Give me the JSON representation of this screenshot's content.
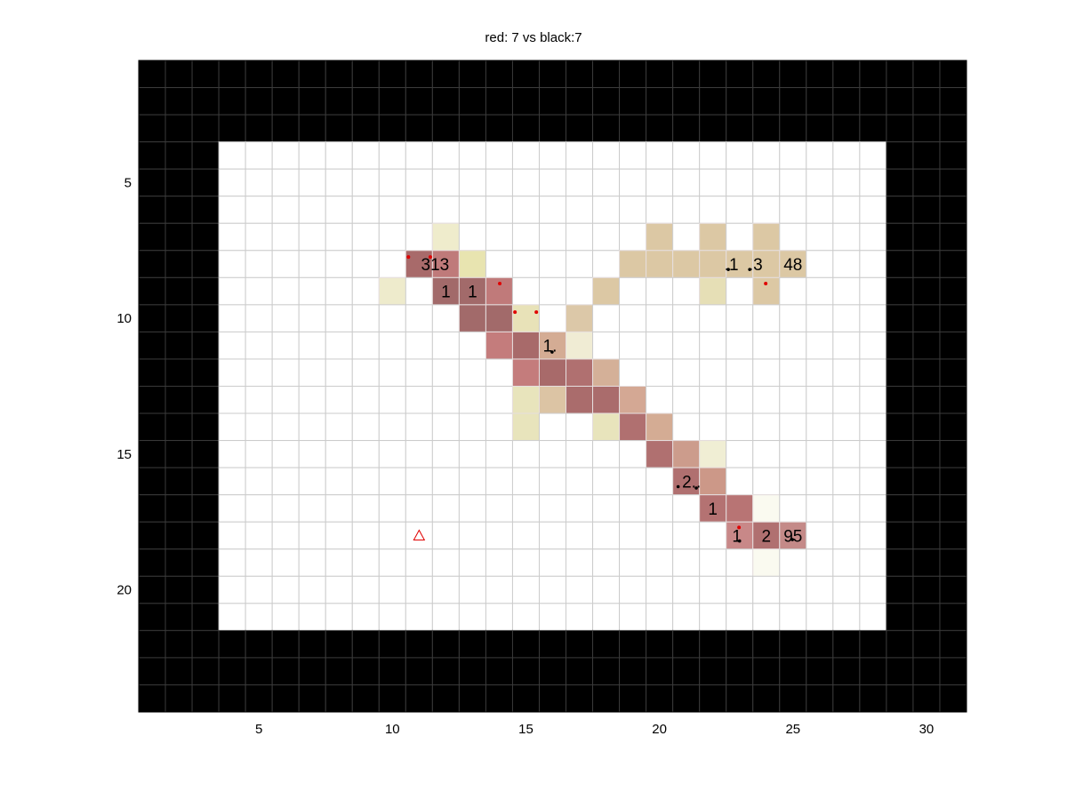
{
  "chart_data": {
    "type": "heatmap",
    "title": "red: 7 vs black:7",
    "cols": 31,
    "rows": 24,
    "xlim": [
      0.5,
      31.5
    ],
    "ylim": [
      0.5,
      24.5
    ],
    "y_reversed": true,
    "xticks": [
      5,
      10,
      15,
      20,
      25,
      30
    ],
    "yticks": [
      5,
      10,
      15,
      20
    ],
    "grid": true,
    "colors": {
      "wall": "#000000",
      "free": "#ffffff",
      "grid": "#cccccc",
      "red_marker": "#e00000",
      "black_marker": "#000000"
    },
    "wall_region": "outside rows 4-21 x cols 4-28",
    "cells": [
      {
        "col": 12,
        "row": 7,
        "color": "#efeccc"
      },
      {
        "col": 20,
        "row": 7,
        "color": "#dcc8a4"
      },
      {
        "col": 22,
        "row": 7,
        "color": "#dcc8a4"
      },
      {
        "col": 24,
        "row": 7,
        "color": "#dcc8a4"
      },
      {
        "col": 11,
        "row": 8,
        "color": "#a86a6a"
      },
      {
        "col": 12,
        "row": 8,
        "color": "#bf7a7a"
      },
      {
        "col": 13,
        "row": 8,
        "color": "#e8e4b0"
      },
      {
        "col": 19,
        "row": 8,
        "color": "#dcc8a4"
      },
      {
        "col": 20,
        "row": 8,
        "color": "#dcc8a4"
      },
      {
        "col": 21,
        "row": 8,
        "color": "#dcc8a4"
      },
      {
        "col": 22,
        "row": 8,
        "color": "#dcc8a4"
      },
      {
        "col": 23,
        "row": 8,
        "color": "#dcc8a4"
      },
      {
        "col": 24,
        "row": 8,
        "color": "#dcc8a4"
      },
      {
        "col": 25,
        "row": 8,
        "color": "#dcc8a4"
      },
      {
        "col": 10,
        "row": 9,
        "color": "#eeebcc"
      },
      {
        "col": 12,
        "row": 9,
        "color": "#a26a6a"
      },
      {
        "col": 13,
        "row": 9,
        "color": "#a26a6a"
      },
      {
        "col": 14,
        "row": 9,
        "color": "#c07a7a"
      },
      {
        "col": 18,
        "row": 9,
        "color": "#dcc8a4"
      },
      {
        "col": 22,
        "row": 9,
        "color": "#e6dfb6"
      },
      {
        "col": 24,
        "row": 9,
        "color": "#dcc8a4"
      },
      {
        "col": 13,
        "row": 10,
        "color": "#a26a6a"
      },
      {
        "col": 14,
        "row": 10,
        "color": "#a26a6a"
      },
      {
        "col": 15,
        "row": 10,
        "color": "#e8e2b8"
      },
      {
        "col": 17,
        "row": 10,
        "color": "#dcc8a8"
      },
      {
        "col": 14,
        "row": 11,
        "color": "#c47c7c"
      },
      {
        "col": 15,
        "row": 11,
        "color": "#a86a6a"
      },
      {
        "col": 16,
        "row": 11,
        "color": "#d4ac94"
      },
      {
        "col": 17,
        "row": 11,
        "color": "#f0ecd4"
      },
      {
        "col": 15,
        "row": 12,
        "color": "#c47c7c"
      },
      {
        "col": 16,
        "row": 12,
        "color": "#a86a6a"
      },
      {
        "col": 17,
        "row": 12,
        "color": "#b07070"
      },
      {
        "col": 18,
        "row": 12,
        "color": "#d4b098"
      },
      {
        "col": 15,
        "row": 13,
        "color": "#e8e4bc"
      },
      {
        "col": 16,
        "row": 13,
        "color": "#dcc4a4"
      },
      {
        "col": 17,
        "row": 13,
        "color": "#aa6c6c"
      },
      {
        "col": 18,
        "row": 13,
        "color": "#aa6c6c"
      },
      {
        "col": 19,
        "row": 13,
        "color": "#d4a894"
      },
      {
        "col": 15,
        "row": 14,
        "color": "#e8e4bc"
      },
      {
        "col": 18,
        "row": 14,
        "color": "#e8e4bc"
      },
      {
        "col": 19,
        "row": 14,
        "color": "#b07070"
      },
      {
        "col": 20,
        "row": 14,
        "color": "#d4ac94"
      },
      {
        "col": 20,
        "row": 15,
        "color": "#b07070"
      },
      {
        "col": 21,
        "row": 15,
        "color": "#cc9c8c"
      },
      {
        "col": 22,
        "row": 15,
        "color": "#f0eed4"
      },
      {
        "col": 21,
        "row": 16,
        "color": "#b07070"
      },
      {
        "col": 22,
        "row": 16,
        "color": "#cc9888"
      },
      {
        "col": 22,
        "row": 17,
        "color": "#b47272"
      },
      {
        "col": 23,
        "row": 17,
        "color": "#b87474"
      },
      {
        "col": 24,
        "row": 17,
        "color": "#fafaf0"
      },
      {
        "col": 23,
        "row": 18,
        "color": "#c88888"
      },
      {
        "col": 24,
        "row": 18,
        "color": "#b07070"
      },
      {
        "col": 25,
        "row": 18,
        "color": "#c48a88"
      },
      {
        "col": 24,
        "row": 19,
        "color": "#fafaf0"
      }
    ],
    "labels": [
      {
        "text": "313",
        "x": 11.6,
        "y": 8
      },
      {
        "text": "1",
        "x": 12,
        "y": 9
      },
      {
        "text": "1",
        "x": 13,
        "y": 9
      },
      {
        "text": "1.",
        "x": 15.9,
        "y": 11
      },
      {
        "text": ".1",
        "x": 22.7,
        "y": 8
      },
      {
        "text": ".3",
        "x": 23.6,
        "y": 8
      },
      {
        "text": "48",
        "x": 25,
        "y": 8
      },
      {
        "text": "2..",
        "x": 21.2,
        "y": 16
      },
      {
        "text": "1",
        "x": 22,
        "y": 17
      },
      {
        "text": "1",
        "x": 22.9,
        "y": 18
      },
      {
        "text": "2",
        "x": 24,
        "y": 18
      },
      {
        "text": "95",
        "x": 25,
        "y": 18
      }
    ],
    "red_points": [
      [
        10.6,
        7.74
      ],
      [
        11.42,
        7.74
      ],
      [
        14.02,
        8.72
      ],
      [
        14.59,
        9.77
      ],
      [
        15.39,
        9.77
      ],
      [
        23.98,
        8.72
      ],
      [
        22.98,
        17.7
      ]
    ],
    "black_points": [
      [
        15.98,
        11.24
      ],
      [
        22.58,
        8.2
      ],
      [
        23.38,
        8.2
      ],
      [
        20.7,
        16.2
      ],
      [
        21.38,
        16.25
      ],
      [
        24.98,
        18.15
      ],
      [
        23.0,
        18.2
      ]
    ],
    "triangle_marker": {
      "x": 11,
      "y": 18,
      "color": "#e00000"
    }
  }
}
